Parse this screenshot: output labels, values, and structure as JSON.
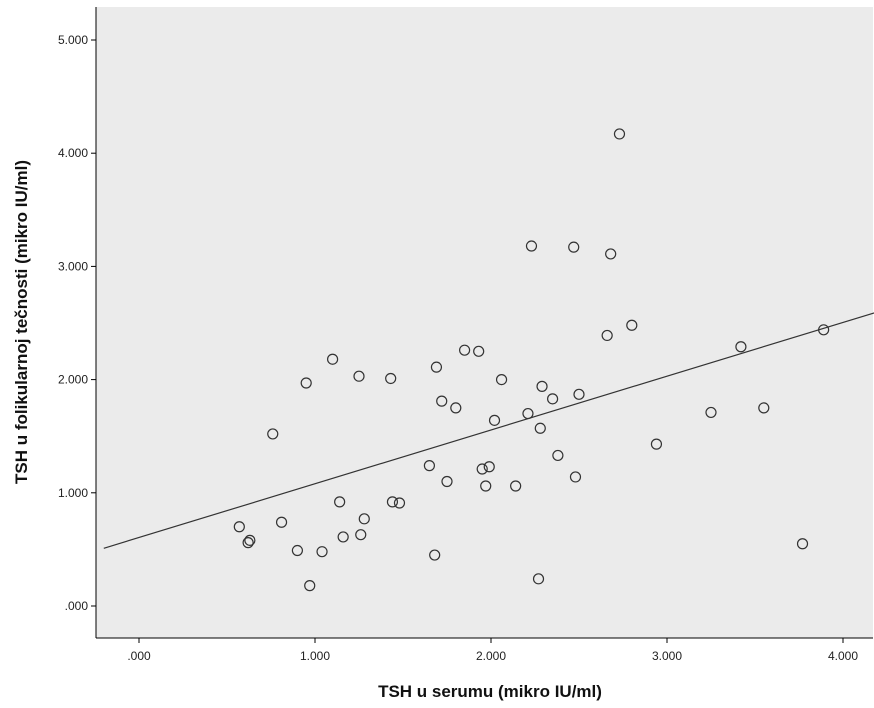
{
  "chart_data": {
    "type": "scatter",
    "title": "",
    "xlabel": "TSH u serumu (mikro IU/ml)",
    "ylabel": "TSH u folikularnoj tečnosti (mikro IU/ml)",
    "xlim": [
      -0.2,
      4.2
    ],
    "ylim": [
      -0.3,
      5.2
    ],
    "x_ticks": [
      0,
      1,
      2,
      3,
      4
    ],
    "x_tick_labels": [
      ".000",
      "1.000",
      "2.000",
      "3.000",
      "4.000"
    ],
    "y_ticks": [
      0,
      1,
      2,
      3,
      4,
      5
    ],
    "y_tick_labels": [
      ".000",
      "1.000",
      "2.000",
      "3.000",
      "4.000",
      "5.000"
    ],
    "grid": false,
    "colors": {
      "plot_background": "#ebebeb",
      "marker": "#333333",
      "line": "#333333",
      "frame": "#000000"
    },
    "points": [
      {
        "x": 0.57,
        "y": 0.7
      },
      {
        "x": 0.62,
        "y": 0.56
      },
      {
        "x": 0.63,
        "y": 0.58
      },
      {
        "x": 0.76,
        "y": 1.52
      },
      {
        "x": 0.81,
        "y": 0.74
      },
      {
        "x": 0.9,
        "y": 0.49
      },
      {
        "x": 0.95,
        "y": 1.97
      },
      {
        "x": 0.97,
        "y": 0.18
      },
      {
        "x": 1.04,
        "y": 0.48
      },
      {
        "x": 1.1,
        "y": 2.18
      },
      {
        "x": 1.14,
        "y": 0.92
      },
      {
        "x": 1.16,
        "y": 0.61
      },
      {
        "x": 1.25,
        "y": 2.03
      },
      {
        "x": 1.26,
        "y": 0.63
      },
      {
        "x": 1.28,
        "y": 0.77
      },
      {
        "x": 1.43,
        "y": 2.01
      },
      {
        "x": 1.44,
        "y": 0.92
      },
      {
        "x": 1.48,
        "y": 0.91
      },
      {
        "x": 1.65,
        "y": 1.24
      },
      {
        "x": 1.68,
        "y": 0.45
      },
      {
        "x": 1.69,
        "y": 2.11
      },
      {
        "x": 1.72,
        "y": 1.81
      },
      {
        "x": 1.75,
        "y": 1.1
      },
      {
        "x": 1.8,
        "y": 1.75
      },
      {
        "x": 1.85,
        "y": 2.26
      },
      {
        "x": 1.93,
        "y": 2.25
      },
      {
        "x": 1.95,
        "y": 1.21
      },
      {
        "x": 1.97,
        "y": 1.06
      },
      {
        "x": 1.99,
        "y": 1.23
      },
      {
        "x": 2.02,
        "y": 1.64
      },
      {
        "x": 2.06,
        "y": 2.0
      },
      {
        "x": 2.14,
        "y": 1.06
      },
      {
        "x": 2.21,
        "y": 1.7
      },
      {
        "x": 2.23,
        "y": 3.18
      },
      {
        "x": 2.27,
        "y": 0.24
      },
      {
        "x": 2.28,
        "y": 1.57
      },
      {
        "x": 2.29,
        "y": 1.94
      },
      {
        "x": 2.35,
        "y": 1.83
      },
      {
        "x": 2.38,
        "y": 1.33
      },
      {
        "x": 2.47,
        "y": 3.17
      },
      {
        "x": 2.48,
        "y": 1.14
      },
      {
        "x": 2.5,
        "y": 1.87
      },
      {
        "x": 2.66,
        "y": 2.39
      },
      {
        "x": 2.68,
        "y": 3.11
      },
      {
        "x": 2.73,
        "y": 4.17
      },
      {
        "x": 2.8,
        "y": 2.48
      },
      {
        "x": 2.94,
        "y": 1.43
      },
      {
        "x": 3.25,
        "y": 1.71
      },
      {
        "x": 3.42,
        "y": 2.29
      },
      {
        "x": 3.55,
        "y": 1.75
      },
      {
        "x": 3.77,
        "y": 0.55
      },
      {
        "x": 3.89,
        "y": 2.44
      }
    ],
    "fit_line": {
      "x": [
        -0.2,
        4.2
      ],
      "y": [
        0.51,
        2.6
      ]
    }
  }
}
